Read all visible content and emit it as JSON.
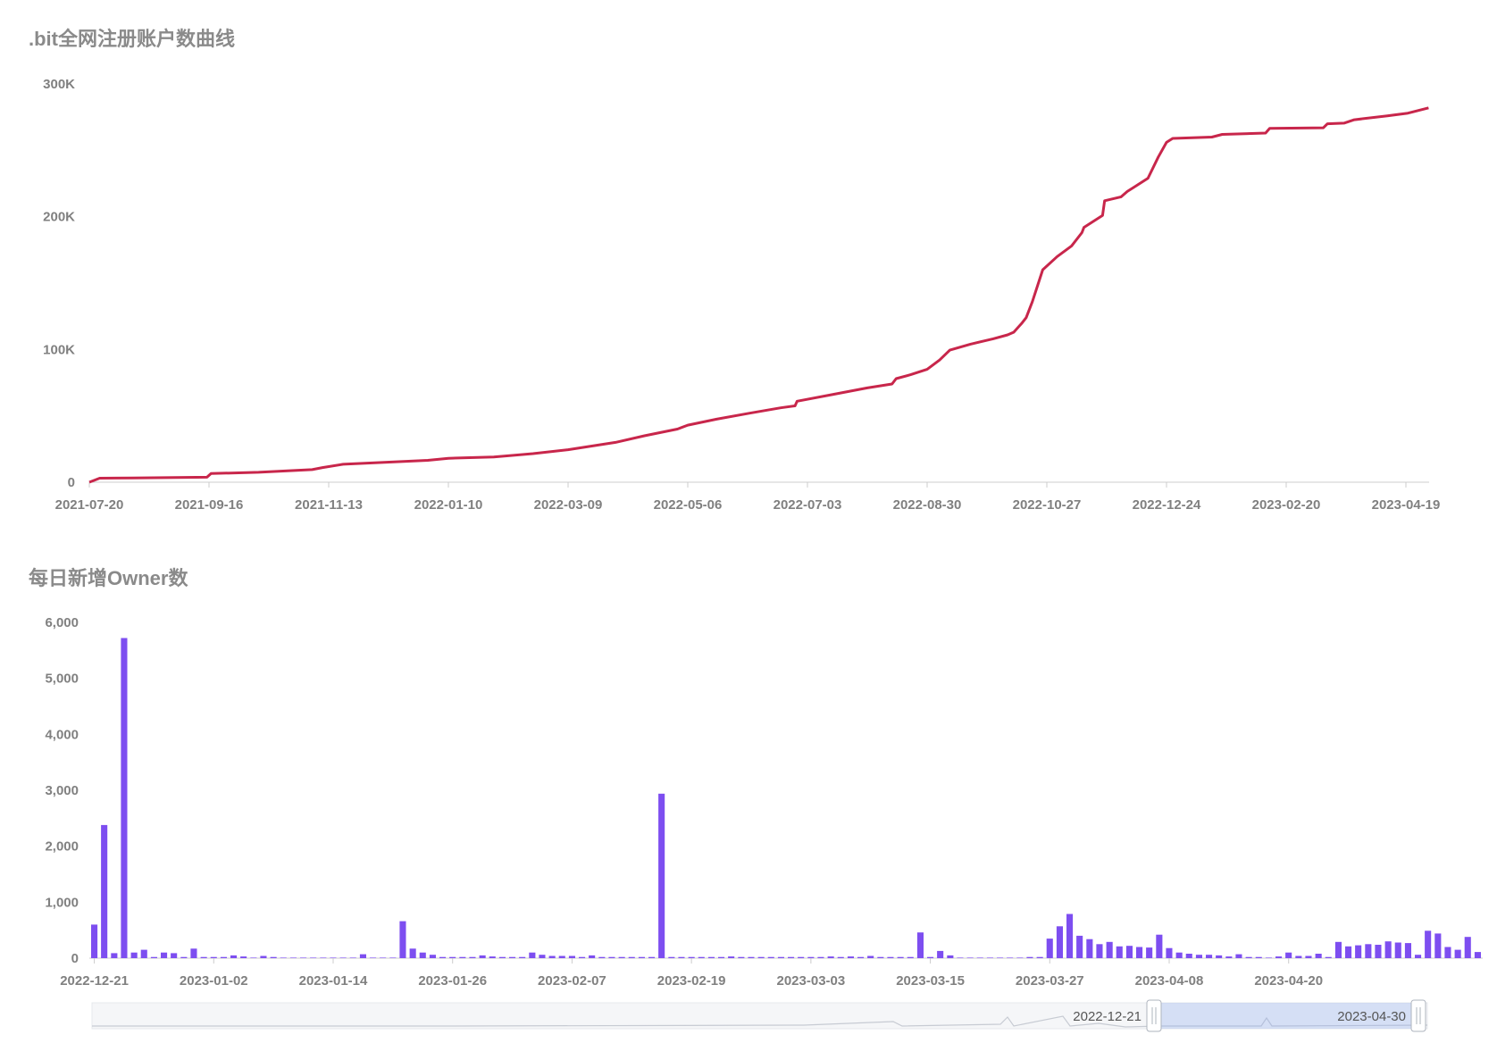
{
  "chart_data": [
    {
      "type": "line",
      "title": ".bit全网注册账户数曲线",
      "color": "#c8264b",
      "xlabel": "",
      "ylabel": "",
      "y_ticks": [
        "0",
        "100K",
        "200K",
        "300K"
      ],
      "ylim": [
        0,
        300000
      ],
      "x_ticks": [
        "2021-07-20",
        "2021-09-16",
        "2021-11-13",
        "2022-01-10",
        "2022-03-09",
        "2022-05-06",
        "2022-07-03",
        "2022-08-30",
        "2022-10-27",
        "2022-12-24",
        "2023-02-20",
        "2023-04-19"
      ],
      "grid": false,
      "series": [
        {
          "x": [
            "2021-07-20",
            "2021-07-25",
            "2021-08-10",
            "2021-09-15",
            "2021-09-17",
            "2021-10-10",
            "2021-11-05",
            "2021-11-10",
            "2021-11-20",
            "2021-12-10",
            "2021-12-31",
            "2022-01-10",
            "2022-02-01",
            "2022-02-20",
            "2022-03-09",
            "2022-04-01",
            "2022-04-15",
            "2022-05-01",
            "2022-05-06",
            "2022-05-20",
            "2022-06-05",
            "2022-06-20",
            "2022-06-27",
            "2022-06-28",
            "2022-07-15",
            "2022-08-01",
            "2022-08-13",
            "2022-08-15",
            "2022-08-22",
            "2022-08-30",
            "2022-09-05",
            "2022-09-10",
            "2022-09-20",
            "2022-10-01",
            "2022-10-08",
            "2022-10-11",
            "2022-10-15",
            "2022-10-17",
            "2022-10-20",
            "2022-10-25",
            "2022-11-01",
            "2022-11-08",
            "2022-11-13",
            "2022-11-14",
            "2022-11-23",
            "2022-11-24",
            "2022-12-02",
            "2022-12-05",
            "2022-12-10",
            "2022-12-15",
            "2022-12-20",
            "2022-12-24",
            "2022-12-27",
            "2023-01-15",
            "2023-01-20",
            "2023-02-10",
            "2023-02-12",
            "2023-03-10",
            "2023-03-12",
            "2023-03-20",
            "2023-03-25",
            "2023-04-10",
            "2023-04-20",
            "2023-04-30"
          ],
          "values": [
            0,
            3000,
            3200,
            3800,
            6500,
            7500,
            9500,
            11000,
            13500,
            15000,
            16500,
            18000,
            19000,
            21500,
            24500,
            30000,
            35000,
            40000,
            43000,
            47500,
            52000,
            56000,
            57500,
            61000,
            66000,
            71000,
            74000,
            78000,
            81000,
            85000,
            92000,
            99500,
            104000,
            108000,
            111000,
            113000,
            120000,
            124000,
            136000,
            160000,
            170000,
            178000,
            188000,
            192000,
            201000,
            212000,
            215000,
            219000,
            224000,
            229000,
            245000,
            256000,
            259000,
            260000,
            262000,
            263000,
            266500,
            267000,
            270000,
            270500,
            273000,
            276000,
            278000,
            282000
          ]
        }
      ]
    },
    {
      "type": "bar",
      "title": "每日新增Owner数",
      "color": "#7d4ef0",
      "xlabel": "",
      "ylabel": "",
      "y_ticks": [
        "0",
        "1,000",
        "2,000",
        "3,000",
        "4,000",
        "5,000",
        "6,000"
      ],
      "ylim": [
        0,
        6000
      ],
      "x_ticks": [
        "2022-12-21",
        "2023-01-02",
        "2023-01-14",
        "2023-01-26",
        "2023-02-07",
        "2023-02-19",
        "2023-03-03",
        "2023-03-15",
        "2023-03-27",
        "2023-04-08",
        "2023-04-20"
      ],
      "grid": false,
      "categories_start": "2022-12-21",
      "values": [
        600,
        2380,
        90,
        5720,
        100,
        150,
        20,
        100,
        90,
        20,
        170,
        20,
        20,
        20,
        50,
        30,
        10,
        40,
        20,
        10,
        10,
        10,
        10,
        10,
        10,
        10,
        10,
        70,
        10,
        10,
        10,
        660,
        170,
        100,
        60,
        20,
        20,
        20,
        20,
        50,
        30,
        20,
        20,
        20,
        100,
        60,
        40,
        40,
        40,
        20,
        50,
        20,
        20,
        20,
        20,
        20,
        20,
        2940,
        20,
        20,
        20,
        20,
        20,
        20,
        30,
        20,
        20,
        20,
        20,
        20,
        20,
        20,
        20,
        20,
        30,
        20,
        30,
        20,
        40,
        20,
        20,
        20,
        20,
        460,
        20,
        130,
        50,
        10,
        10,
        10,
        10,
        10,
        10,
        10,
        20,
        20,
        350,
        570,
        790,
        400,
        340,
        250,
        290,
        210,
        220,
        200,
        190,
        420,
        180,
        100,
        80,
        60,
        60,
        50,
        30,
        70,
        20,
        20,
        10,
        30,
        100,
        40,
        40,
        80,
        20,
        290,
        210,
        230,
        250,
        240,
        300,
        280,
        270,
        60,
        490,
        440,
        200,
        150,
        380,
        110
      ],
      "zoom_slider": {
        "start_label": "2022-12-21",
        "end_label": "2023-04-30"
      }
    }
  ]
}
